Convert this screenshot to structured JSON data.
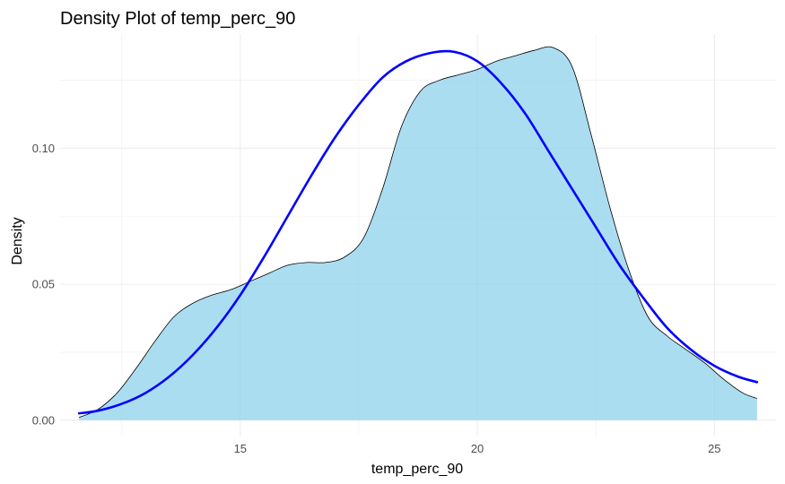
{
  "chart_data": {
    "type": "area",
    "title": "Density Plot of temp_perc_90",
    "xlabel": "temp_perc_90",
    "ylabel": "Density",
    "xlim": [
      11.2,
      26.3
    ],
    "ylim": [
      -0.006,
      0.142
    ],
    "x_ticks": [
      15,
      20,
      25
    ],
    "x_tick_labels": [
      "15",
      "20",
      "25"
    ],
    "y_ticks": [
      0.0,
      0.05,
      0.1
    ],
    "y_tick_labels": [
      "0.00",
      "0.05",
      "0.10"
    ],
    "grid": true,
    "legend": "none",
    "series": [
      {
        "kind": "density-area",
        "fill": "#87ceeb",
        "fill_opacity": 0.7,
        "stroke": "#000000",
        "x": [
          11.6,
          12.0,
          12.4,
          12.8,
          13.2,
          13.6,
          14.0,
          14.4,
          14.8,
          15.2,
          15.6,
          16.0,
          16.4,
          16.8,
          17.2,
          17.6,
          18.0,
          18.4,
          18.8,
          19.2,
          19.6,
          20.0,
          20.4,
          20.8,
          21.2,
          21.6,
          22.0,
          22.4,
          22.8,
          23.2,
          23.6,
          24.0,
          24.4,
          24.8,
          25.2,
          25.6,
          25.9
        ],
        "y": [
          0.001,
          0.004,
          0.01,
          0.019,
          0.029,
          0.038,
          0.043,
          0.046,
          0.048,
          0.051,
          0.054,
          0.057,
          0.058,
          0.058,
          0.06,
          0.067,
          0.085,
          0.108,
          0.121,
          0.125,
          0.127,
          0.129,
          0.132,
          0.134,
          0.136,
          0.137,
          0.13,
          0.105,
          0.078,
          0.055,
          0.038,
          0.031,
          0.026,
          0.021,
          0.015,
          0.01,
          0.008
        ]
      },
      {
        "kind": "normal-curve",
        "stroke": "#0000ff",
        "x": [
          11.6,
          12.0,
          12.5,
          13.0,
          13.5,
          14.0,
          14.5,
          15.0,
          15.5,
          16.0,
          16.5,
          17.0,
          17.5,
          18.0,
          18.5,
          19.0,
          19.5,
          20.0,
          20.5,
          21.0,
          21.5,
          22.0,
          22.5,
          23.0,
          23.5,
          24.0,
          24.5,
          25.0,
          25.5,
          25.9
        ],
        "y": [
          0.0025,
          0.0035,
          0.006,
          0.01,
          0.016,
          0.024,
          0.034,
          0.046,
          0.06,
          0.075,
          0.09,
          0.104,
          0.116,
          0.126,
          0.132,
          0.135,
          0.1355,
          0.132,
          0.124,
          0.113,
          0.099,
          0.085,
          0.071,
          0.057,
          0.045,
          0.034,
          0.026,
          0.02,
          0.016,
          0.014
        ]
      }
    ]
  }
}
